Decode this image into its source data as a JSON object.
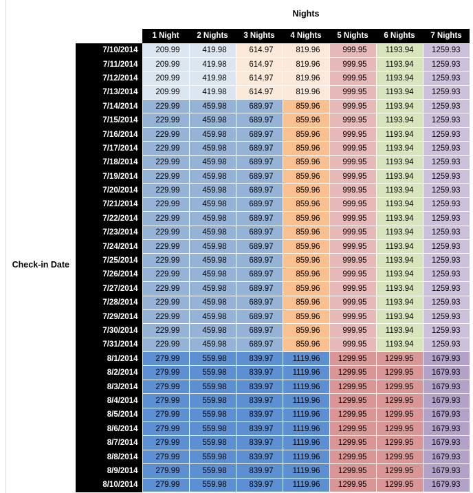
{
  "table": {
    "title": "Nights",
    "row_axis_label": "Check-in Date",
    "header_bg": "#000000",
    "header_text": "#FFFFFF",
    "value_colors": {
      "209.99": "#DCE6F1",
      "419.98": "#DCE6F1",
      "614.97": "#FDE9D9",
      "819.96": "#FDE9D9",
      "229.99": "#95B3D7",
      "459.98": "#95B3D7",
      "689.97": "#95B3D7",
      "859.96": "#FAC090",
      "999.95": "#E6B8B7",
      "1193.94": "#D7E4BC",
      "1259.93": "#CCC0DA",
      "279.99": "#5C90D2",
      "559.98": "#5C90D2",
      "839.97": "#5C90D2",
      "1119.96": "#5C90D2",
      "1299.95": "#D99694",
      "1679.93": "#B2A2C7"
    }
  },
  "chart_data": {
    "type": "heatmap",
    "title": "Nights",
    "x_axis_label": "Nights",
    "y_axis_label": "Check-in Date",
    "columns": [
      "1 Night",
      "2 Nights",
      "3 Nights",
      "4 Nights",
      "5 Nights",
      "6 Nights",
      "7 Nights"
    ],
    "rows": [
      "7/10/2014",
      "7/11/2014",
      "7/12/2014",
      "7/13/2014",
      "7/14/2014",
      "7/15/2014",
      "7/16/2014",
      "7/17/2014",
      "7/18/2014",
      "7/19/2014",
      "7/20/2014",
      "7/21/2014",
      "7/22/2014",
      "7/23/2014",
      "7/24/2014",
      "7/25/2014",
      "7/26/2014",
      "7/27/2014",
      "7/28/2014",
      "7/29/2014",
      "7/30/2014",
      "7/31/2014",
      "8/1/2014",
      "8/2/2014",
      "8/3/2014",
      "8/4/2014",
      "8/5/2014",
      "8/6/2014",
      "8/7/2014",
      "8/8/2014",
      "8/9/2014",
      "8/10/2014"
    ],
    "values": [
      [
        209.99,
        419.98,
        614.97,
        819.96,
        999.95,
        1193.94,
        1259.93
      ],
      [
        209.99,
        419.98,
        614.97,
        819.96,
        999.95,
        1193.94,
        1259.93
      ],
      [
        209.99,
        419.98,
        614.97,
        819.96,
        999.95,
        1193.94,
        1259.93
      ],
      [
        209.99,
        419.98,
        614.97,
        819.96,
        999.95,
        1193.94,
        1259.93
      ],
      [
        229.99,
        459.98,
        689.97,
        859.96,
        999.95,
        1193.94,
        1259.93
      ],
      [
        229.99,
        459.98,
        689.97,
        859.96,
        999.95,
        1193.94,
        1259.93
      ],
      [
        229.99,
        459.98,
        689.97,
        859.96,
        999.95,
        1193.94,
        1259.93
      ],
      [
        229.99,
        459.98,
        689.97,
        859.96,
        999.95,
        1193.94,
        1259.93
      ],
      [
        229.99,
        459.98,
        689.97,
        859.96,
        999.95,
        1193.94,
        1259.93
      ],
      [
        229.99,
        459.98,
        689.97,
        859.96,
        999.95,
        1193.94,
        1259.93
      ],
      [
        229.99,
        459.98,
        689.97,
        859.96,
        999.95,
        1193.94,
        1259.93
      ],
      [
        229.99,
        459.98,
        689.97,
        859.96,
        999.95,
        1193.94,
        1259.93
      ],
      [
        229.99,
        459.98,
        689.97,
        859.96,
        999.95,
        1193.94,
        1259.93
      ],
      [
        229.99,
        459.98,
        689.97,
        859.96,
        999.95,
        1193.94,
        1259.93
      ],
      [
        229.99,
        459.98,
        689.97,
        859.96,
        999.95,
        1193.94,
        1259.93
      ],
      [
        229.99,
        459.98,
        689.97,
        859.96,
        999.95,
        1193.94,
        1259.93
      ],
      [
        229.99,
        459.98,
        689.97,
        859.96,
        999.95,
        1193.94,
        1259.93
      ],
      [
        229.99,
        459.98,
        689.97,
        859.96,
        999.95,
        1193.94,
        1259.93
      ],
      [
        229.99,
        459.98,
        689.97,
        859.96,
        999.95,
        1193.94,
        1259.93
      ],
      [
        229.99,
        459.98,
        689.97,
        859.96,
        999.95,
        1193.94,
        1259.93
      ],
      [
        229.99,
        459.98,
        689.97,
        859.96,
        999.95,
        1193.94,
        1259.93
      ],
      [
        229.99,
        459.98,
        689.97,
        859.96,
        999.95,
        1193.94,
        1259.93
      ],
      [
        279.99,
        559.98,
        839.97,
        1119.96,
        1299.95,
        1299.95,
        1679.93
      ],
      [
        279.99,
        559.98,
        839.97,
        1119.96,
        1299.95,
        1299.95,
        1679.93
      ],
      [
        279.99,
        559.98,
        839.97,
        1119.96,
        1299.95,
        1299.95,
        1679.93
      ],
      [
        279.99,
        559.98,
        839.97,
        1119.96,
        1299.95,
        1299.95,
        1679.93
      ],
      [
        279.99,
        559.98,
        839.97,
        1119.96,
        1299.95,
        1299.95,
        1679.93
      ],
      [
        279.99,
        559.98,
        839.97,
        1119.96,
        1299.95,
        1299.95,
        1679.93
      ],
      [
        279.99,
        559.98,
        839.97,
        1119.96,
        1299.95,
        1299.95,
        1679.93
      ],
      [
        279.99,
        559.98,
        839.97,
        1119.96,
        1299.95,
        1299.95,
        1679.93
      ],
      [
        279.99,
        559.98,
        839.97,
        1119.96,
        1299.95,
        1299.95,
        1679.93
      ],
      [
        279.99,
        559.98,
        839.97,
        1119.96,
        1299.95,
        1299.95,
        1679.93
      ]
    ]
  }
}
